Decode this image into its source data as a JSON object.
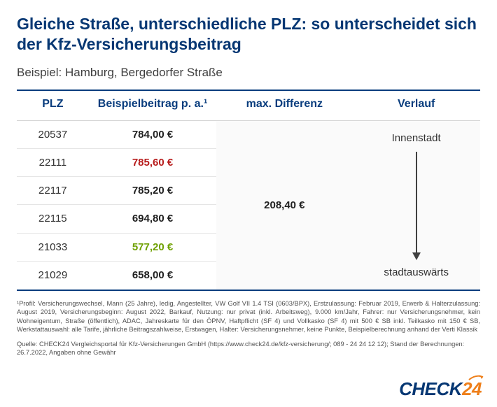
{
  "title": "Gleiche Straße, unterschiedliche PLZ: so unterscheidet sich der Kfz-Versicherungsbeitrag",
  "subtitle": "Beispiel: Hamburg, Bergedorfer Straße",
  "headers": {
    "plz": "PLZ",
    "beitrag": "Beispielbeitrag p. a.¹",
    "diff": "max. Differenz",
    "verlauf": "Verlauf"
  },
  "rows": [
    {
      "plz": "20537",
      "beitrag": "784,00 €",
      "hl": ""
    },
    {
      "plz": "22111",
      "beitrag": "785,60 €",
      "hl": "red"
    },
    {
      "plz": "22117",
      "beitrag": "785,20 €",
      "hl": ""
    },
    {
      "plz": "22115",
      "beitrag": "694,80 €",
      "hl": ""
    },
    {
      "plz": "21033",
      "beitrag": "577,20 €",
      "hl": "green"
    },
    {
      "plz": "21029",
      "beitrag": "658,00 €",
      "hl": ""
    }
  ],
  "diff_value": "208,40 €",
  "verlauf_top": "Innenstadt",
  "verlauf_bottom": "stadtauswärts",
  "footnote": "¹Profil: Versicherungswechsel, Mann (25 Jahre), ledig, Angestellter, VW Golf VII 1.4 TSI (0603/BPX), Erstzulassung: Februar 2019, Erwerb & Halterzulassung: August 2019, Versicherungsbeginn: August 2022, Barkauf, Nutzung: nur privat (inkl. Arbeitsweg), 9.000 km/Jahr, Fahrer: nur Versicherungsnehmer, kein Wohneigentum, Straße (öffentlich), ADAC, Jahreskarte für den ÖPNV, Haftpflicht (SF 4) und Vollkasko (SF 4) mit 500 € SB inkl. Teilkasko mit 150 € SB, Werkstattauswahl: alle Tarife, jährliche Beitragszahlweise, Erstwagen, Halter: Versicherungsnehmer, keine Punkte, Beispielberechnung anhand der Verti Klassik",
  "quelle": "Quelle: CHECK24 Vergleichsportal für Kfz-Versicherungen GmbH (https://www.check24.de/kfz-versicherung/; 089 - 24 24 12 12); Stand der Berechnungen: 26.7.2022, Angaben ohne Gewähr",
  "logo": {
    "a": "CHECK",
    "b": "24"
  },
  "colors": {
    "brand_blue": "#063773",
    "red": "#b71c1c",
    "green": "#6ea000",
    "orange": "#ee7f1a"
  }
}
